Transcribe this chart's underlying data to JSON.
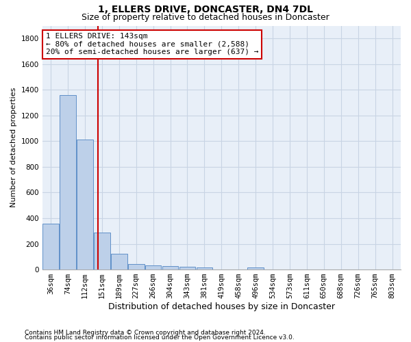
{
  "title": "1, ELLERS DRIVE, DONCASTER, DN4 7DL",
  "subtitle": "Size of property relative to detached houses in Doncaster",
  "xlabel": "Distribution of detached houses by size in Doncaster",
  "ylabel": "Number of detached properties",
  "bin_labels": [
    "36sqm",
    "74sqm",
    "112sqm",
    "151sqm",
    "189sqm",
    "227sqm",
    "266sqm",
    "304sqm",
    "343sqm",
    "381sqm",
    "419sqm",
    "458sqm",
    "496sqm",
    "534sqm",
    "573sqm",
    "611sqm",
    "650sqm",
    "688sqm",
    "726sqm",
    "765sqm",
    "803sqm"
  ],
  "bar_heights": [
    355,
    1360,
    1015,
    290,
    125,
    42,
    35,
    28,
    20,
    15,
    0,
    0,
    18,
    0,
    0,
    0,
    0,
    0,
    0,
    0,
    0
  ],
  "bar_color": "#bdd0e9",
  "bar_edge_color": "#6090c8",
  "grid_color": "#c8d4e4",
  "background_color": "#e8eff8",
  "red_line_x": 2.78,
  "ann_line1": "1 ELLERS DRIVE: 143sqm",
  "ann_line2": "← 80% of detached houses are smaller (2,588)",
  "ann_line3": "20% of semi-detached houses are larger (637) →",
  "annotation_box_color": "#ffffff",
  "annotation_box_edge": "#cc0000",
  "footnote_line1": "Contains HM Land Registry data © Crown copyright and database right 2024.",
  "footnote_line2": "Contains public sector information licensed under the Open Government Licence v3.0.",
  "ylim": [
    0,
    1900
  ],
  "yticks": [
    0,
    200,
    400,
    600,
    800,
    1000,
    1200,
    1400,
    1600,
    1800
  ],
  "title_fontsize": 10,
  "subtitle_fontsize": 9,
  "ylabel_fontsize": 8,
  "xlabel_fontsize": 9,
  "tick_fontsize": 7.5,
  "ann_fontsize": 8
}
